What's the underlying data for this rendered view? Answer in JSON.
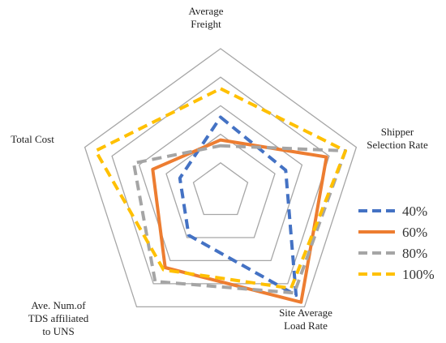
{
  "chart_data": {
    "type": "radar",
    "axes": [
      [
        "Average",
        "Freight"
      ],
      [
        "Shipper",
        "Selection Rate"
      ],
      [
        "Site Average",
        "Load Rate"
      ],
      [
        "Ave. Num.of",
        "TDS  affiliated",
        "to UNS"
      ],
      [
        "Total Cost"
      ]
    ],
    "rmax": 5,
    "grid_levels": [
      1,
      2,
      3,
      4,
      5
    ],
    "series": [
      {
        "name": "40%",
        "color": "#4472C4",
        "dash": true,
        "values": [
          2.6,
          2.4,
          4.5,
          1.9,
          1.5
        ]
      },
      {
        "name": "60%",
        "color": "#ED7D31",
        "dash": false,
        "values": [
          1.8,
          3.9,
          4.8,
          3.3,
          2.5
        ]
      },
      {
        "name": "80%",
        "color": "#A5A5A5",
        "dash": true,
        "values": [
          1.6,
          4.6,
          4.4,
          3.9,
          3.2
        ]
      },
      {
        "name": "100%",
        "color": "#FFC000",
        "dash": true,
        "values": [
          3.6,
          4.6,
          4.2,
          3.4,
          4.6
        ]
      }
    ],
    "legend_position": "right",
    "grid": true
  }
}
